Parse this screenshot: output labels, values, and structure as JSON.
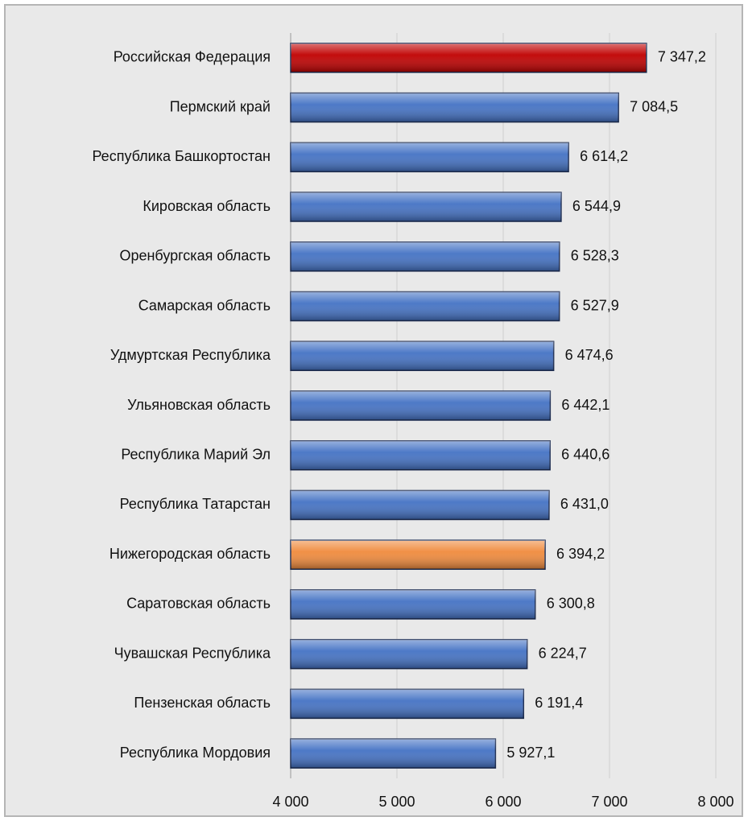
{
  "chart_data": {
    "type": "bar",
    "orientation": "horizontal",
    "categories": [
      "Российская Федерация",
      "Пермский край",
      "Республика Башкортостан",
      "Кировская область",
      "Оренбургская область",
      "Самарская область",
      "Удмуртская Республика",
      "Ульяновская область",
      "Республика Марий Эл",
      "Республика Татарстан",
      "Нижегородская область",
      "Саратовская область",
      "Чувашская Республика",
      "Пензенская область",
      "Республика Мордовия"
    ],
    "values": [
      7347.2,
      7084.5,
      6614.2,
      6544.9,
      6528.3,
      6527.9,
      6474.6,
      6442.1,
      6440.6,
      6431.0,
      6394.2,
      6300.8,
      6224.7,
      6191.4,
      5927.1
    ],
    "value_labels": [
      "7 347,2",
      "7 084,5",
      "6 614,2",
      "6 544,9",
      "6 528,3",
      "6 527,9",
      "6 474,6",
      "6 442,1",
      "6 440,6",
      "6 431,0",
      "6 394,2",
      "6 300,8",
      "6 224,7",
      "6 191,4",
      "5 927,1"
    ],
    "colors": [
      "#c00000",
      "#4472c4",
      "#4472c4",
      "#4472c4",
      "#4472c4",
      "#4472c4",
      "#4472c4",
      "#4472c4",
      "#4472c4",
      "#4472c4",
      "#f08a3c",
      "#4472c4",
      "#4472c4",
      "#4472c4",
      "#4472c4"
    ],
    "xlim": [
      4000,
      8000
    ],
    "xticks": [
      {
        "value": 4000,
        "label": "4 000"
      },
      {
        "value": 5000,
        "label": "5 000"
      },
      {
        "value": 6000,
        "label": "6 000"
      },
      {
        "value": 7000,
        "label": "7 000"
      },
      {
        "value": 8000,
        "label": "8 000"
      }
    ],
    "grid": true
  }
}
